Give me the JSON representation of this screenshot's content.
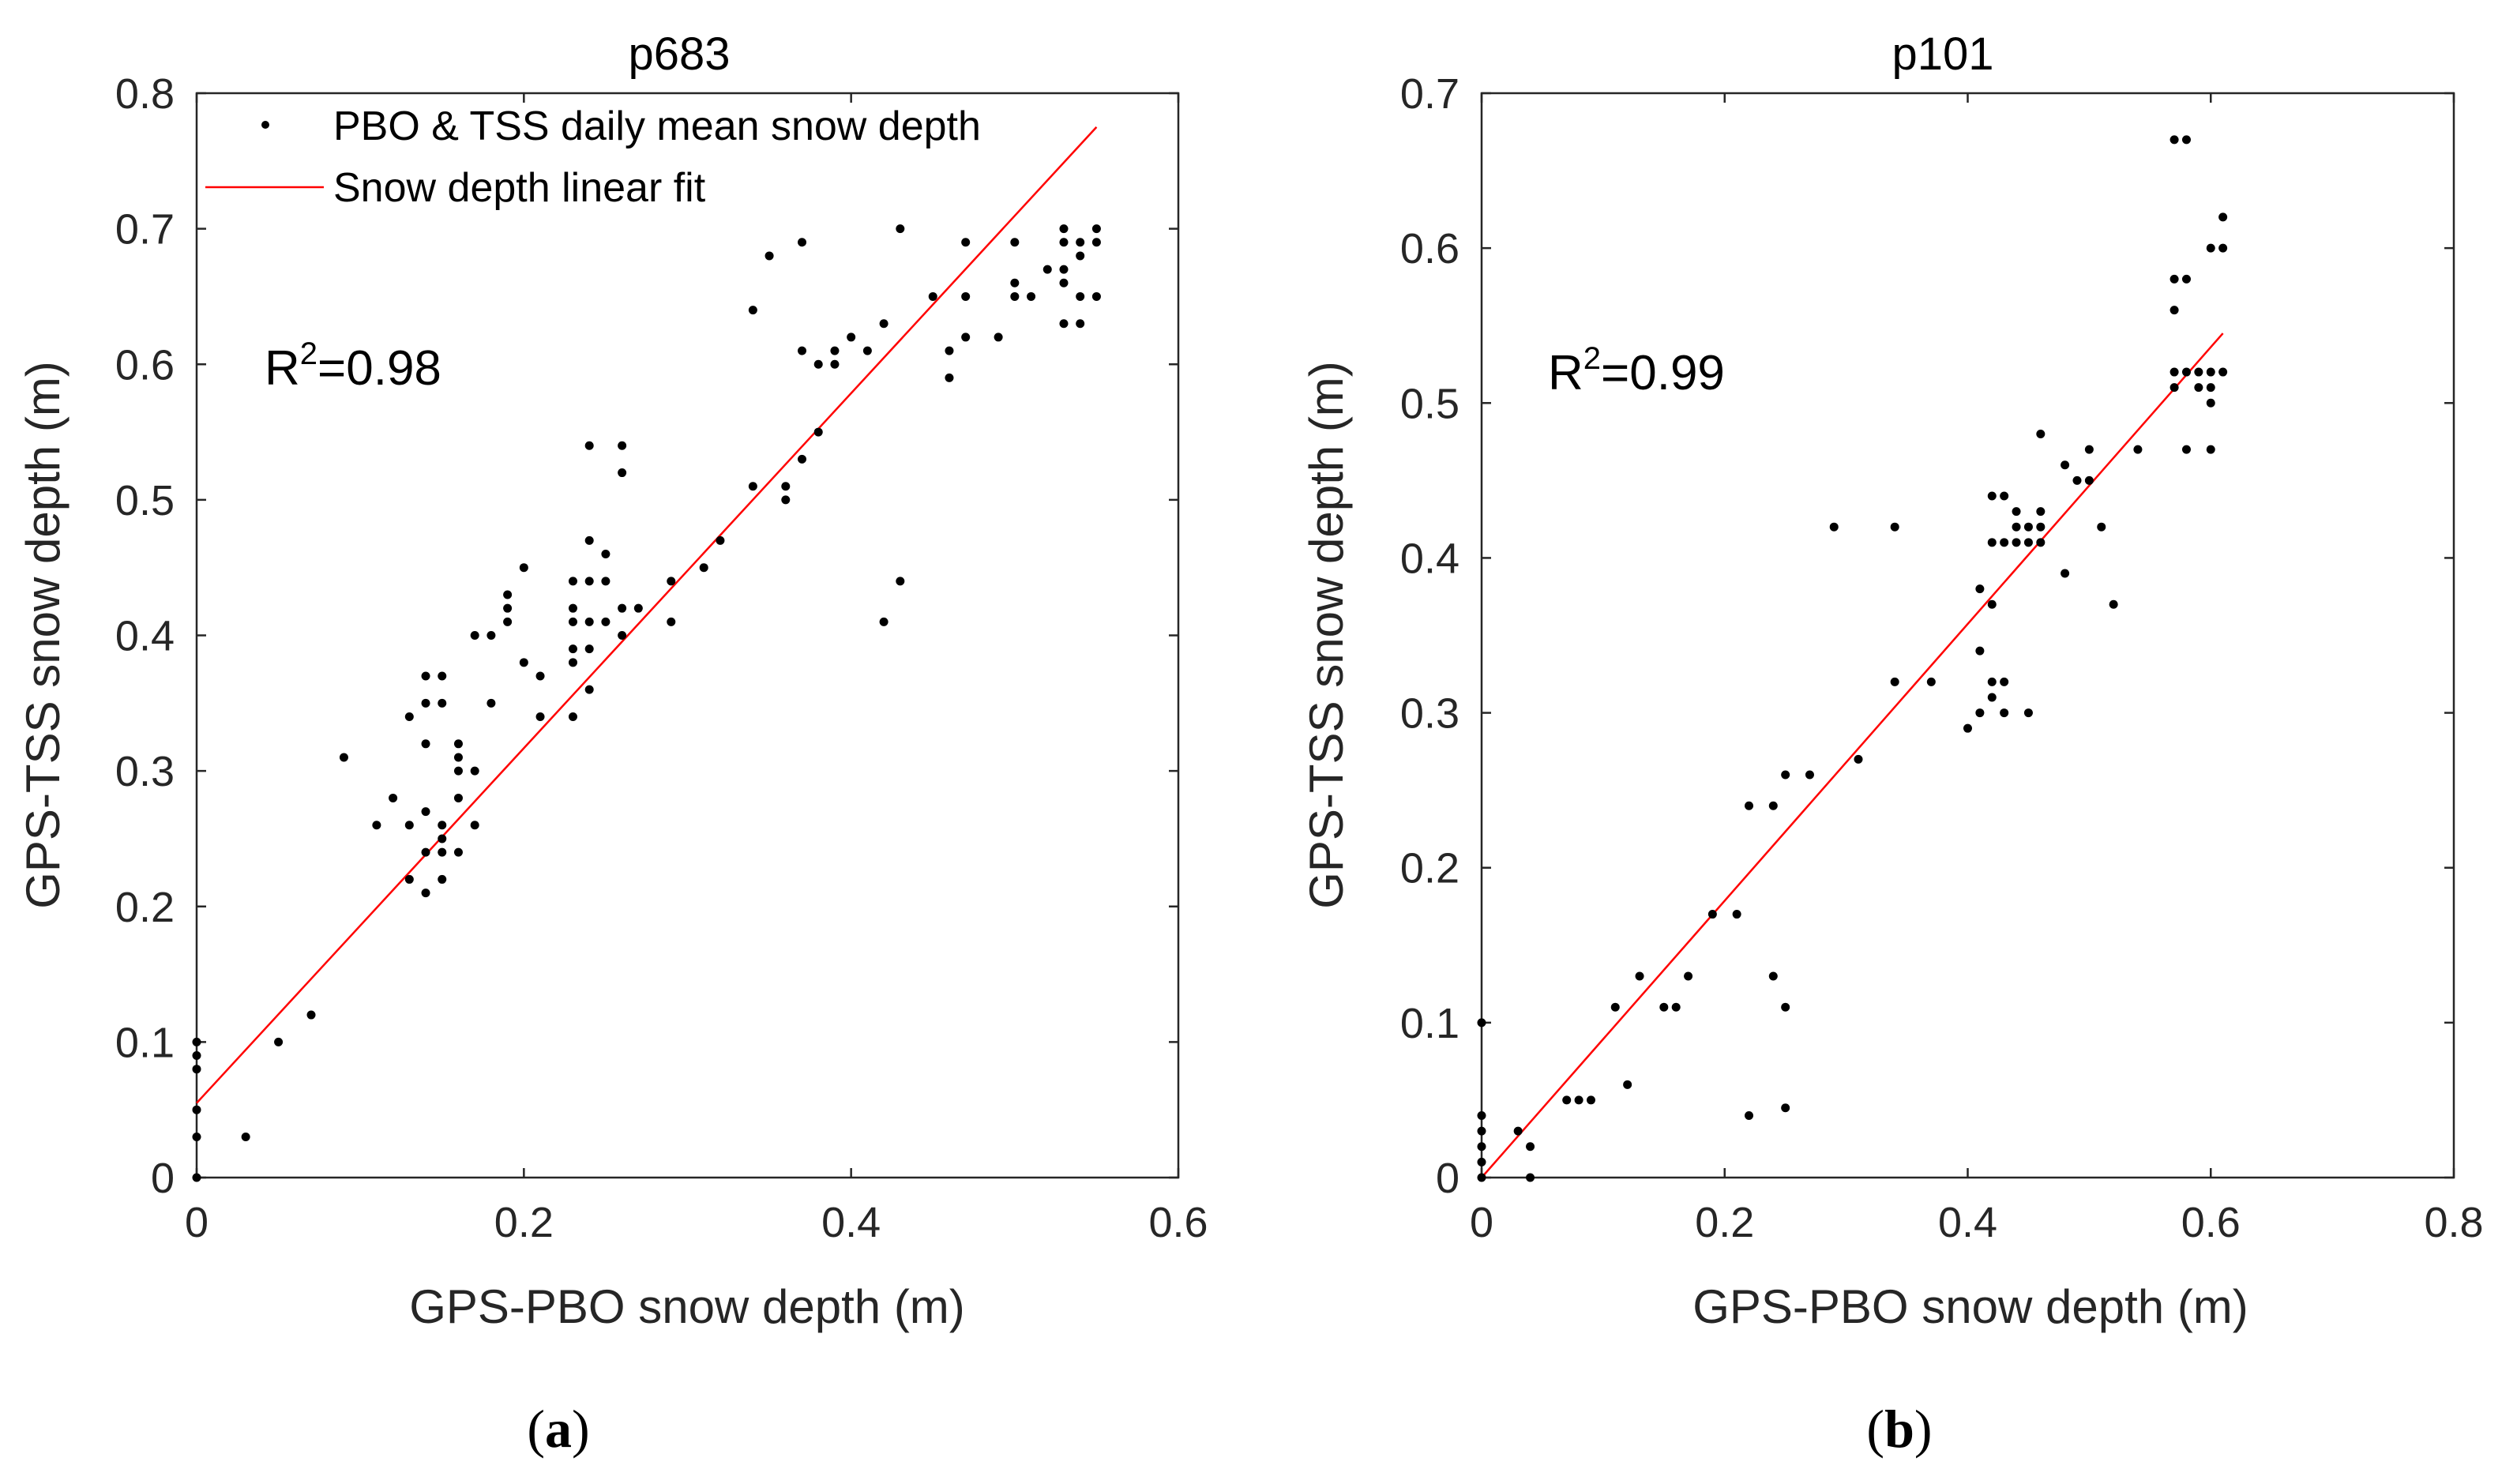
{
  "chart_data": [
    {
      "type": "scatter",
      "title": "p683",
      "xlabel": "GPS-PBO snow depth (m)",
      "ylabel": "GPS-TSS snow depth (m)",
      "xlim": [
        0,
        0.6
      ],
      "ylim": [
        0,
        0.8
      ],
      "xticks": [
        0,
        0.2,
        0.4,
        0.6
      ],
      "yticks": [
        0,
        0.1,
        0.2,
        0.3,
        0.4,
        0.5,
        0.6,
        0.7,
        0.8
      ],
      "xtick_labels": [
        "0",
        "0.2",
        "0.4",
        "0.6"
      ],
      "ytick_labels": [
        "0",
        "0.1",
        "0.2",
        "0.3",
        "0.4",
        "0.5",
        "0.6",
        "0.7",
        "0.8"
      ],
      "legend": {
        "position": "top-left",
        "entries": [
          {
            "label": "PBO & TSS daily mean snow depth",
            "marker": "dot"
          },
          {
            "label": "Snow depth linear fit",
            "marker": "line"
          }
        ]
      },
      "annotation": {
        "prefix": "R",
        "sup": "2",
        "suffix": "=0.98",
        "at": [
          0.05,
          0.6
        ]
      },
      "panel_label": {
        "open": "(",
        "letter": "a",
        "close": ")"
      },
      "fit_line": {
        "x": [
          0,
          0.55
        ],
        "y": [
          0.055,
          0.775
        ],
        "color": "#ff0000"
      },
      "series": [
        {
          "name": "PBO & TSS daily mean snow depth",
          "points": [
            [
              0,
              0
            ],
            [
              0,
              0.03
            ],
            [
              0,
              0.05
            ],
            [
              0,
              0.08
            ],
            [
              0,
              0.09
            ],
            [
              0,
              0.1
            ],
            [
              0.03,
              0.03
            ],
            [
              0.05,
              0.1
            ],
            [
              0.07,
              0.12
            ],
            [
              0.09,
              0.31
            ],
            [
              0.11,
              0.26
            ],
            [
              0.12,
              0.28
            ],
            [
              0.13,
              0.22
            ],
            [
              0.13,
              0.26
            ],
            [
              0.13,
              0.34
            ],
            [
              0.14,
              0.21
            ],
            [
              0.14,
              0.24
            ],
            [
              0.14,
              0.27
            ],
            [
              0.14,
              0.32
            ],
            [
              0.14,
              0.35
            ],
            [
              0.14,
              0.37
            ],
            [
              0.15,
              0.22
            ],
            [
              0.15,
              0.24
            ],
            [
              0.15,
              0.25
            ],
            [
              0.15,
              0.26
            ],
            [
              0.15,
              0.35
            ],
            [
              0.15,
              0.37
            ],
            [
              0.16,
              0.24
            ],
            [
              0.16,
              0.28
            ],
            [
              0.16,
              0.3
            ],
            [
              0.16,
              0.31
            ],
            [
              0.16,
              0.32
            ],
            [
              0.17,
              0.26
            ],
            [
              0.17,
              0.3
            ],
            [
              0.17,
              0.4
            ],
            [
              0.18,
              0.35
            ],
            [
              0.18,
              0.4
            ],
            [
              0.19,
              0.41
            ],
            [
              0.19,
              0.42
            ],
            [
              0.19,
              0.43
            ],
            [
              0.2,
              0.38
            ],
            [
              0.2,
              0.45
            ],
            [
              0.21,
              0.34
            ],
            [
              0.21,
              0.37
            ],
            [
              0.23,
              0.34
            ],
            [
              0.23,
              0.38
            ],
            [
              0.23,
              0.39
            ],
            [
              0.23,
              0.41
            ],
            [
              0.23,
              0.42
            ],
            [
              0.23,
              0.44
            ],
            [
              0.24,
              0.36
            ],
            [
              0.24,
              0.39
            ],
            [
              0.24,
              0.41
            ],
            [
              0.24,
              0.44
            ],
            [
              0.24,
              0.47
            ],
            [
              0.24,
              0.54
            ],
            [
              0.25,
              0.41
            ],
            [
              0.25,
              0.44
            ],
            [
              0.25,
              0.46
            ],
            [
              0.26,
              0.4
            ],
            [
              0.26,
              0.42
            ],
            [
              0.26,
              0.52
            ],
            [
              0.26,
              0.54
            ],
            [
              0.27,
              0.42
            ],
            [
              0.29,
              0.41
            ],
            [
              0.29,
              0.44
            ],
            [
              0.31,
              0.45
            ],
            [
              0.32,
              0.47
            ],
            [
              0.34,
              0.51
            ],
            [
              0.34,
              0.64
            ],
            [
              0.35,
              0.68
            ],
            [
              0.36,
              0.5
            ],
            [
              0.36,
              0.51
            ],
            [
              0.37,
              0.53
            ],
            [
              0.37,
              0.61
            ],
            [
              0.37,
              0.69
            ],
            [
              0.38,
              0.55
            ],
            [
              0.38,
              0.6
            ],
            [
              0.39,
              0.6
            ],
            [
              0.39,
              0.61
            ],
            [
              0.4,
              0.62
            ],
            [
              0.41,
              0.61
            ],
            [
              0.42,
              0.41
            ],
            [
              0.42,
              0.63
            ],
            [
              0.43,
              0.44
            ],
            [
              0.43,
              0.7
            ],
            [
              0.45,
              0.65
            ],
            [
              0.46,
              0.59
            ],
            [
              0.46,
              0.61
            ],
            [
              0.47,
              0.62
            ],
            [
              0.47,
              0.65
            ],
            [
              0.47,
              0.69
            ],
            [
              0.49,
              0.62
            ],
            [
              0.5,
              0.65
            ],
            [
              0.5,
              0.66
            ],
            [
              0.5,
              0.69
            ],
            [
              0.51,
              0.65
            ],
            [
              0.52,
              0.67
            ],
            [
              0.53,
              0.63
            ],
            [
              0.53,
              0.66
            ],
            [
              0.53,
              0.67
            ],
            [
              0.53,
              0.69
            ],
            [
              0.53,
              0.7
            ],
            [
              0.54,
              0.63
            ],
            [
              0.54,
              0.65
            ],
            [
              0.54,
              0.68
            ],
            [
              0.54,
              0.69
            ],
            [
              0.55,
              0.65
            ],
            [
              0.55,
              0.69
            ],
            [
              0.55,
              0.7
            ]
          ]
        }
      ]
    },
    {
      "type": "scatter",
      "title": "p101",
      "xlabel": "GPS-PBO snow depth (m)",
      "ylabel": "GPS-TSS snow depth (m)",
      "xlim": [
        0,
        0.8
      ],
      "ylim": [
        0,
        0.7
      ],
      "xticks": [
        0,
        0.2,
        0.4,
        0.6,
        0.8
      ],
      "yticks": [
        0,
        0.1,
        0.2,
        0.3,
        0.4,
        0.5,
        0.6,
        0.7
      ],
      "xtick_labels": [
        "0",
        "0.2",
        "0.4",
        "0.6",
        "0.8"
      ],
      "ytick_labels": [
        "0",
        "0.1",
        "0.2",
        "0.3",
        "0.4",
        "0.5",
        "0.6",
        "0.7"
      ],
      "annotation": {
        "prefix": "R",
        "sup": "2",
        "suffix": "=0.99",
        "at": [
          0.06,
          0.5
        ]
      },
      "panel_label": {
        "open": "(",
        "letter": "b",
        "close": ")"
      },
      "fit_line": {
        "x": [
          0,
          0.61
        ],
        "y": [
          0,
          0.545
        ],
        "color": "#ff0000"
      },
      "series": [
        {
          "name": "PBO & TSS daily mean snow depth",
          "points": [
            [
              0,
              0
            ],
            [
              0,
              0.01
            ],
            [
              0,
              0.02
            ],
            [
              0,
              0.03
            ],
            [
              0,
              0.04
            ],
            [
              0,
              0.1
            ],
            [
              0.03,
              0.03
            ],
            [
              0.04,
              0
            ],
            [
              0.04,
              0.02
            ],
            [
              0.07,
              0.05
            ],
            [
              0.08,
              0.05
            ],
            [
              0.09,
              0.05
            ],
            [
              0.11,
              0.11
            ],
            [
              0.12,
              0.06
            ],
            [
              0.13,
              0.13
            ],
            [
              0.15,
              0.11
            ],
            [
              0.16,
              0.11
            ],
            [
              0.17,
              0.13
            ],
            [
              0.19,
              0.17
            ],
            [
              0.21,
              0.17
            ],
            [
              0.22,
              0.04
            ],
            [
              0.22,
              0.24
            ],
            [
              0.24,
              0.13
            ],
            [
              0.24,
              0.24
            ],
            [
              0.25,
              0.045
            ],
            [
              0.25,
              0.11
            ],
            [
              0.25,
              0.26
            ],
            [
              0.27,
              0.26
            ],
            [
              0.29,
              0.42
            ],
            [
              0.31,
              0.27
            ],
            [
              0.34,
              0.32
            ],
            [
              0.34,
              0.42
            ],
            [
              0.37,
              0.32
            ],
            [
              0.4,
              0.29
            ],
            [
              0.41,
              0.3
            ],
            [
              0.41,
              0.34
            ],
            [
              0.41,
              0.38
            ],
            [
              0.42,
              0.31
            ],
            [
              0.42,
              0.32
            ],
            [
              0.42,
              0.37
            ],
            [
              0.42,
              0.41
            ],
            [
              0.42,
              0.44
            ],
            [
              0.43,
              0.3
            ],
            [
              0.43,
              0.32
            ],
            [
              0.43,
              0.41
            ],
            [
              0.43,
              0.44
            ],
            [
              0.44,
              0.41
            ],
            [
              0.44,
              0.42
            ],
            [
              0.44,
              0.43
            ],
            [
              0.45,
              0.3
            ],
            [
              0.45,
              0.41
            ],
            [
              0.45,
              0.42
            ],
            [
              0.46,
              0.41
            ],
            [
              0.46,
              0.42
            ],
            [
              0.46,
              0.43
            ],
            [
              0.46,
              0.48
            ],
            [
              0.48,
              0.39
            ],
            [
              0.48,
              0.46
            ],
            [
              0.49,
              0.45
            ],
            [
              0.5,
              0.45
            ],
            [
              0.5,
              0.47
            ],
            [
              0.51,
              0.42
            ],
            [
              0.52,
              0.37
            ],
            [
              0.54,
              0.47
            ],
            [
              0.57,
              0.51
            ],
            [
              0.57,
              0.52
            ],
            [
              0.57,
              0.56
            ],
            [
              0.57,
              0.58
            ],
            [
              0.57,
              0.67
            ],
            [
              0.58,
              0.47
            ],
            [
              0.58,
              0.52
            ],
            [
              0.58,
              0.58
            ],
            [
              0.58,
              0.67
            ],
            [
              0.59,
              0.51
            ],
            [
              0.59,
              0.52
            ],
            [
              0.6,
              0.47
            ],
            [
              0.6,
              0.5
            ],
            [
              0.6,
              0.51
            ],
            [
              0.6,
              0.52
            ],
            [
              0.6,
              0.6
            ],
            [
              0.61,
              0.52
            ],
            [
              0.61,
              0.6
            ],
            [
              0.61,
              0.62
            ]
          ]
        }
      ]
    }
  ]
}
